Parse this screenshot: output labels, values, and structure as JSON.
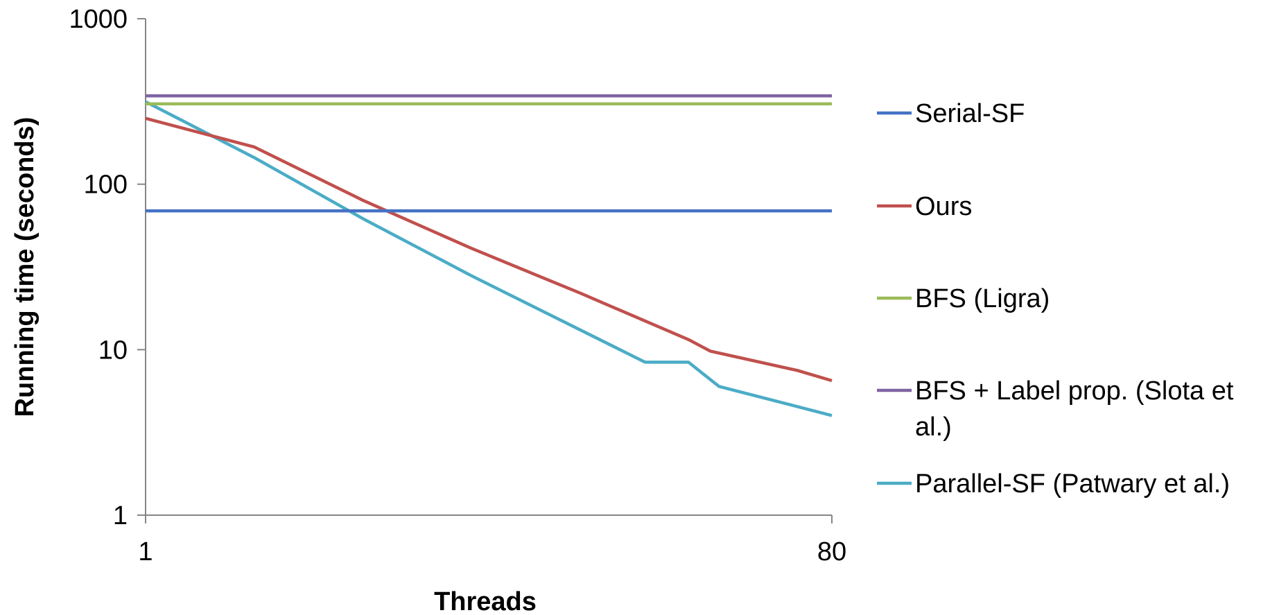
{
  "chart_data": {
    "type": "line",
    "title": "",
    "xlabel": "Threads",
    "ylabel": "Running time (seconds)",
    "xscale": "linear",
    "yscale": "log",
    "xlim": [
      1,
      80
    ],
    "ylim": [
      1,
      1000
    ],
    "xticks": [
      "1",
      "80"
    ],
    "yticks": [
      "1",
      "10",
      "100",
      "1000"
    ],
    "grid": false,
    "legend_position": "right",
    "series": [
      {
        "name": "Serial-SF",
        "color": "#4472C4",
        "x": [
          1,
          80
        ],
        "y": [
          69,
          69
        ]
      },
      {
        "name": "Ours",
        "color": "#C0504D",
        "x": [
          1,
          13.5,
          26,
          38.5,
          51,
          63.5,
          66,
          76,
          80
        ],
        "y": [
          250,
          168,
          80,
          41,
          22,
          11.5,
          9.8,
          7.5,
          6.5
        ]
      },
      {
        "name": "BFS (Ligra)",
        "color": "#9BBB59",
        "x": [
          1,
          80
        ],
        "y": [
          306,
          306
        ]
      },
      {
        "name": "BFS + Label prop. (Slota et al.)",
        "color": "#8064A2",
        "x": [
          1,
          80
        ],
        "y": [
          342,
          342
        ]
      },
      {
        "name": "Parallel-SF (Patwary et al.)",
        "color": "#4BACC6",
        "x": [
          1,
          13.5,
          26,
          38.5,
          58.5,
          63.5,
          67,
          80
        ],
        "y": [
          315,
          145,
          62,
          28,
          8.4,
          8.4,
          6.0,
          4.0
        ]
      }
    ]
  }
}
